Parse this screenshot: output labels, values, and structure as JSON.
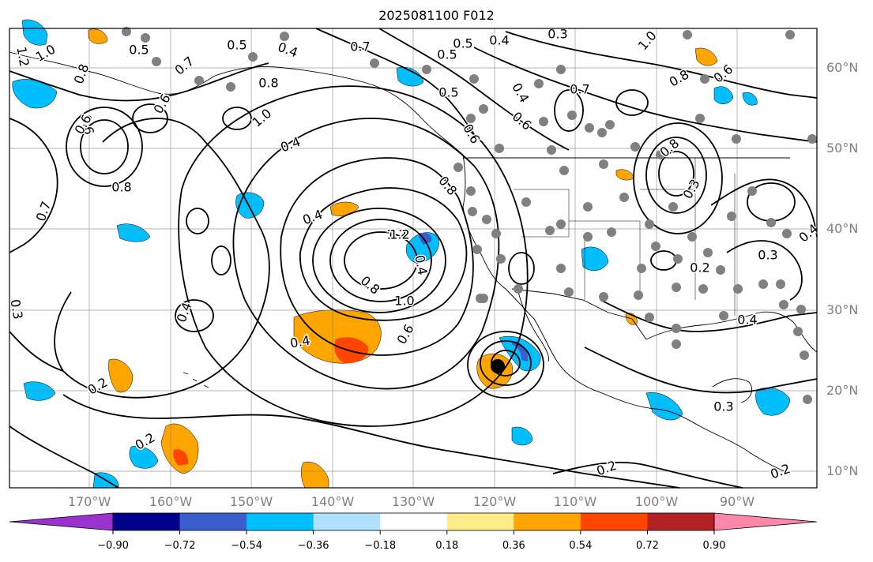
{
  "title": "2025081100 F012",
  "map": {
    "lat_labels": [
      "60°N",
      "50°N",
      "40°N",
      "30°N",
      "20°N",
      "10°N"
    ],
    "lon_labels": [
      "170°W",
      "160°W",
      "150°W",
      "140°W",
      "130°W",
      "120°W",
      "110°W",
      "100°W",
      "90°W"
    ],
    "contour_labels": [
      "1.0",
      "1.2",
      "0.8",
      "0.6",
      "0.5",
      "0.7",
      "0.5",
      "0.4",
      "0.3",
      "1.0",
      "1.2",
      "0.8",
      "0.6",
      "0.7",
      "0.8",
      "0.6",
      "0.8",
      "0.7",
      "0.5",
      "0.5",
      "0.7",
      "0.4",
      "0.6",
      "0.8",
      "0.4",
      "0.3",
      "0.4",
      "1.0",
      "0.4",
      "0.6",
      "0.8",
      "0.2",
      "1.2",
      "0.4",
      "0.8",
      "1.0",
      "0.6",
      "0.5",
      "0.4",
      "0.6",
      "0.2",
      "0.2",
      "0.4",
      "0.3",
      "0.3",
      "0.2",
      "0.2",
      "0.4",
      "0.4",
      "0.3"
    ]
  },
  "colorbar": {
    "colors": [
      "#9a32cd",
      "#00008b",
      "#3a5fcd",
      "#00bfff",
      "#b0e2ff",
      "#ffffff",
      "#ffec8b",
      "#ffa500",
      "#ff4500",
      "#b22222",
      "#ff88aa"
    ],
    "tick_labels": [
      "−0.90",
      "−0.72",
      "−0.54",
      "−0.36",
      "−0.18",
      "0.18",
      "0.36",
      "0.54",
      "0.72",
      "0.90"
    ]
  },
  "colors": {
    "contour": "#000000",
    "gridline": "#808080",
    "station_dot": "#808080",
    "cyclone_marker": "#000000"
  }
}
